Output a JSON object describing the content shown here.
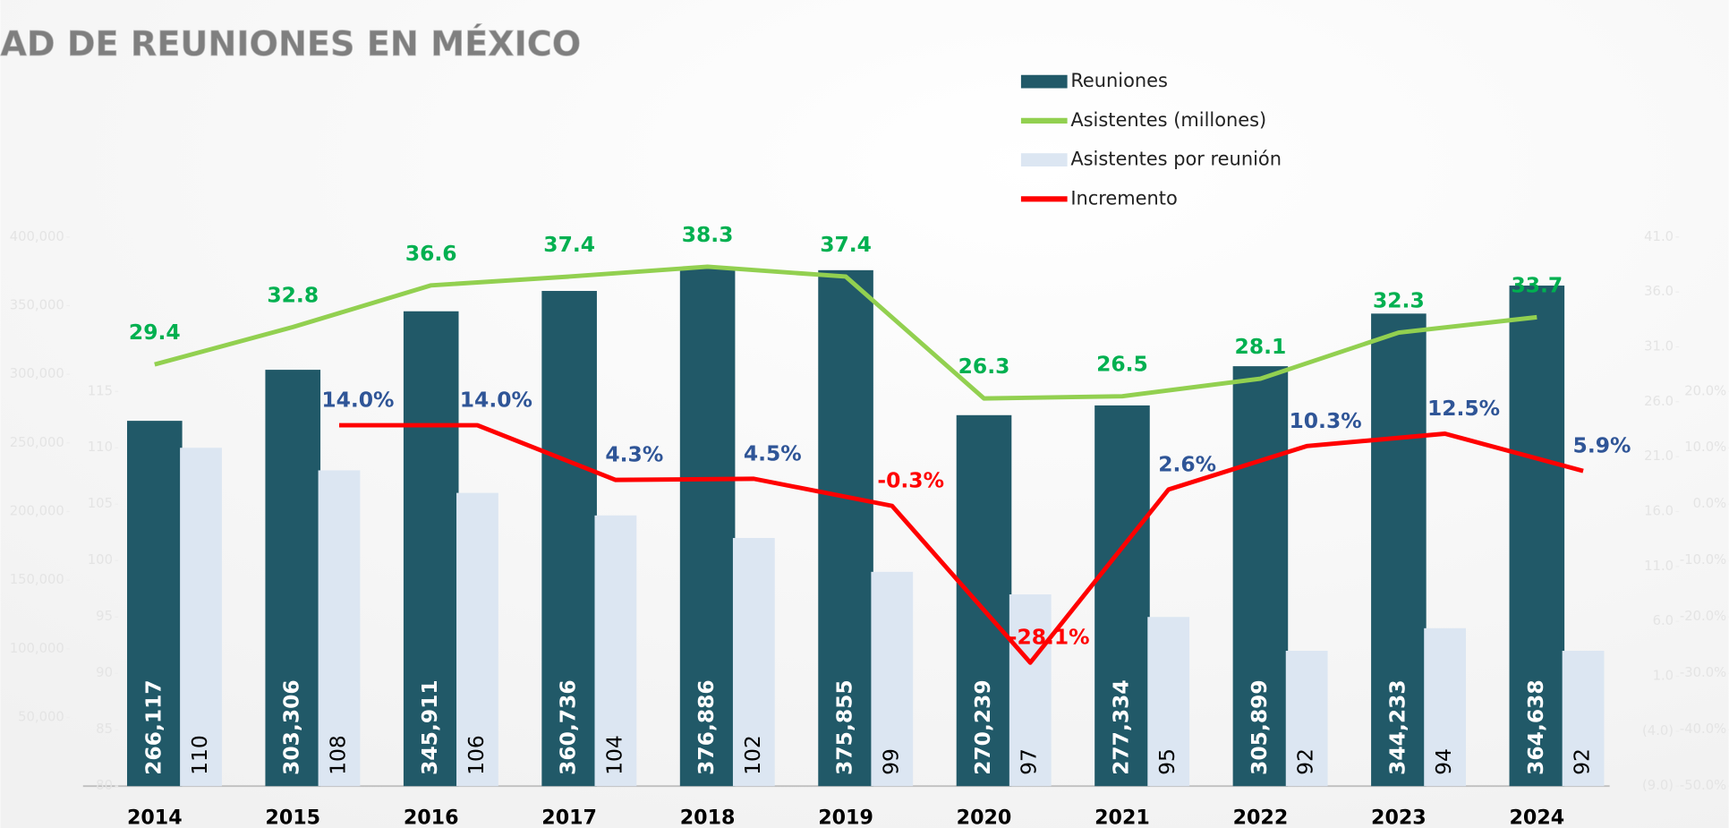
{
  "chart_data": {
    "type": "bar",
    "title": "AD DE REUNIONES EN MÉXICO",
    "categories": [
      "2014",
      "2015",
      "2016",
      "2017",
      "2018",
      "2019",
      "2020",
      "2021",
      "2022",
      "2023",
      "2024"
    ],
    "series": [
      {
        "name": "Reuniones",
        "type": "bar",
        "axis": "y",
        "color": "#215968",
        "values": [
          266117,
          303306,
          345911,
          360736,
          376886,
          375855,
          270239,
          277334,
          305899,
          344233,
          364638
        ],
        "value_labels": [
          "266,117",
          "303,306",
          "345,911",
          "360,736",
          "376,886",
          "375,855",
          "270,239",
          "277,334",
          "305,899",
          "344,233",
          "364,638"
        ]
      },
      {
        "name": "Asistentes (millones)",
        "type": "line",
        "axis": "y2",
        "color": "#92d050",
        "values": [
          29.4,
          32.8,
          36.6,
          37.4,
          38.3,
          37.4,
          26.3,
          26.5,
          28.1,
          32.3,
          33.7
        ]
      },
      {
        "name": "Asistentes por reunión",
        "type": "bar",
        "axis": "y3",
        "color": "#dce6f2",
        "values": [
          110,
          108,
          106,
          104,
          102,
          99,
          97,
          95,
          92,
          94,
          92
        ]
      },
      {
        "name": "Incremento",
        "type": "line",
        "axis": "y4",
        "color": "#ff0000",
        "values": [
          null,
          14.0,
          14.0,
          4.3,
          4.5,
          -0.3,
          -28.1,
          2.6,
          10.3,
          12.5,
          5.9
        ],
        "value_labels": [
          null,
          "14.0%",
          "14.0%",
          "4.3%",
          "4.5%",
          "-0.3%",
          "-28.1%",
          "2.6%",
          "10.3%",
          "12.5%",
          "5.9%"
        ]
      }
    ],
    "ylim": [
      0,
      400000
    ],
    "yticks": [
      {
        "value": 50000,
        "label": "50,000"
      },
      {
        "value": 100000,
        "label": "100,000"
      },
      {
        "value": 150000,
        "label": "150,000"
      },
      {
        "value": 200000,
        "label": "200,000"
      },
      {
        "value": 250000,
        "label": "250,000"
      },
      {
        "value": 300000,
        "label": "300,000"
      },
      {
        "value": 350000,
        "label": "350,000"
      },
      {
        "value": 400000,
        "label": "400,000"
      }
    ],
    "y2lim": [
      -9,
      41
    ],
    "y2ticks": [
      {
        "value": -9,
        "label": "(9.0)"
      },
      {
        "value": -4,
        "label": "(4.0)"
      },
      {
        "value": 1,
        "label": "1.0"
      },
      {
        "value": 6,
        "label": "6.0"
      },
      {
        "value": 11,
        "label": "11.0"
      },
      {
        "value": 16,
        "label": "16.0"
      },
      {
        "value": 21,
        "label": "21.0"
      },
      {
        "value": 26,
        "label": "26.0"
      },
      {
        "value": 31,
        "label": "31.0"
      },
      {
        "value": 36,
        "label": "36.0"
      },
      {
        "value": 41,
        "label": "41.0"
      }
    ],
    "y3lim": [
      80,
      115
    ],
    "y3ticks": [
      80,
      85,
      90,
      95,
      100,
      105,
      110,
      115
    ],
    "y4lim": [
      -50,
      20
    ],
    "y4ticks": [
      {
        "value": -50,
        "label": "-50.0%"
      },
      {
        "value": -40,
        "label": "-40.0%"
      },
      {
        "value": -30,
        "label": "-30.0%"
      },
      {
        "value": -20,
        "label": "-20.0%"
      },
      {
        "value": -10,
        "label": "-10.0%"
      },
      {
        "value": 0,
        "label": "0.0%"
      },
      {
        "value": 10,
        "label": "10.0%"
      },
      {
        "value": 20,
        "label": "20.0%"
      }
    ]
  }
}
